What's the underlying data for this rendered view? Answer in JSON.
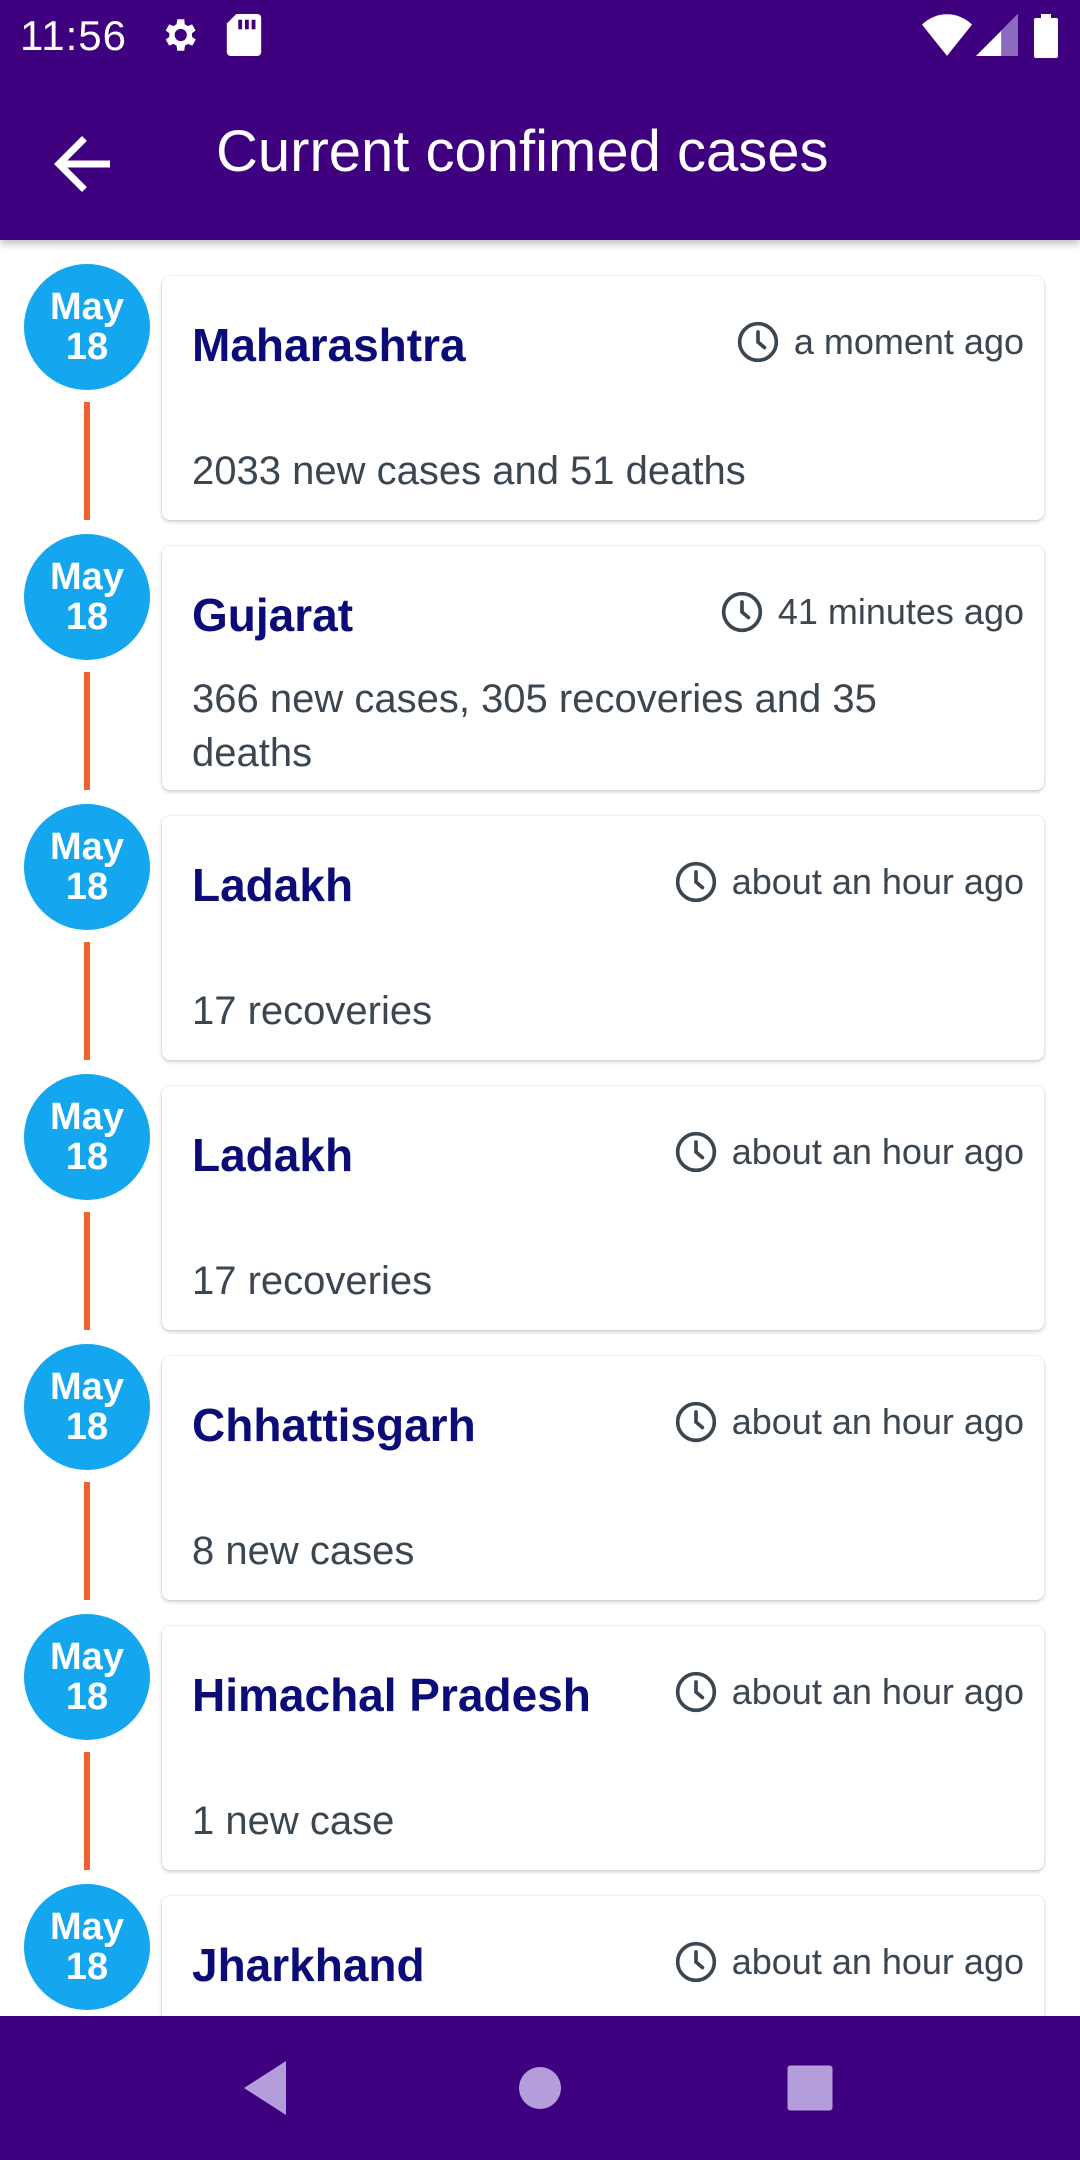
{
  "status_bar": {
    "time": "11:56",
    "icons": [
      "settings-icon",
      "sd-card-icon",
      "wifi-icon",
      "signal-icon",
      "battery-icon"
    ]
  },
  "app_bar": {
    "title": "Current confimed cases",
    "back_icon": "arrow-back-icon"
  },
  "colors": {
    "primary": "#3f007f",
    "date_circle": "#14a6ee",
    "timeline": "#f0622b",
    "card_title": "#0c0c78",
    "card_text": "#3c4650"
  },
  "entries": [
    {
      "month": "May",
      "day": "18",
      "title": "Maharashtra",
      "time": "a moment ago",
      "description": "2033 new cases and 51 deaths"
    },
    {
      "month": "May",
      "day": "18",
      "title": "Gujarat",
      "time": "41 minutes ago",
      "description": "366 new cases, 305 recoveries and 35 deaths"
    },
    {
      "month": "May",
      "day": "18",
      "title": "Ladakh",
      "time": "about an hour ago",
      "description": "17 recoveries"
    },
    {
      "month": "May",
      "day": "18",
      "title": "Ladakh",
      "time": "about an hour ago",
      "description": "17 recoveries"
    },
    {
      "month": "May",
      "day": "18",
      "title": "Chhattisgarh",
      "time": "about an hour ago",
      "description": "8 new cases"
    },
    {
      "month": "May",
      "day": "18",
      "title": "Himachal Pradesh",
      "time": "about an hour ago",
      "description": "1 new case"
    },
    {
      "month": "May",
      "day": "18",
      "title": "Jharkhand",
      "time": "about an hour ago",
      "description": ""
    }
  ],
  "nav_bar": {
    "icons": [
      "back-triangle-icon",
      "home-circle-icon",
      "recents-square-icon"
    ]
  }
}
